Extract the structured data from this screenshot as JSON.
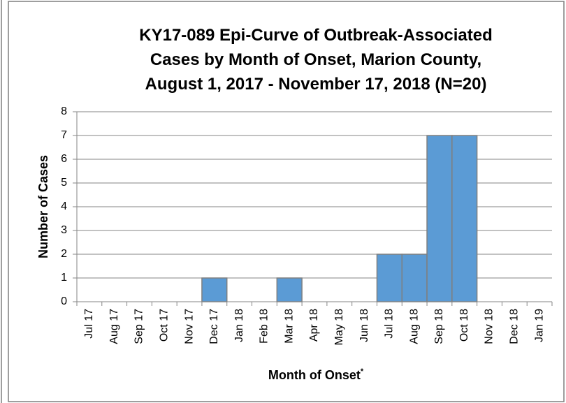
{
  "chart_data": {
    "type": "bar",
    "title": [
      "KY17-089 Epi-Curve of Outbreak-Associated",
      "Cases by Month of Onset, Marion County,",
      "August 1, 2017 - November 17, 2018 (N=20)"
    ],
    "xlabel": "Month of Onset",
    "xlabel_marker": "*",
    "ylabel": "Number of Cases",
    "categories": [
      "Jul 17",
      "Aug 17",
      "Sep 17",
      "Oct 17",
      "Nov 17",
      "Dec 17",
      "Jan 18",
      "Feb 18",
      "Mar 18",
      "Apr 18",
      "May 18",
      "Jun 18",
      "Jul 18",
      "Aug 18",
      "Sep 18",
      "Oct 18",
      "Nov 18",
      "Dec 18",
      "Jan 19"
    ],
    "values": [
      0,
      0,
      0,
      0,
      0,
      1,
      0,
      0,
      1,
      0,
      0,
      0,
      2,
      2,
      7,
      7,
      0,
      0,
      0
    ],
    "color": "#5b9bd5",
    "ylim": [
      0,
      8
    ],
    "yticks": [
      0,
      1,
      2,
      3,
      4,
      5,
      6,
      7,
      8
    ],
    "grid": true
  }
}
